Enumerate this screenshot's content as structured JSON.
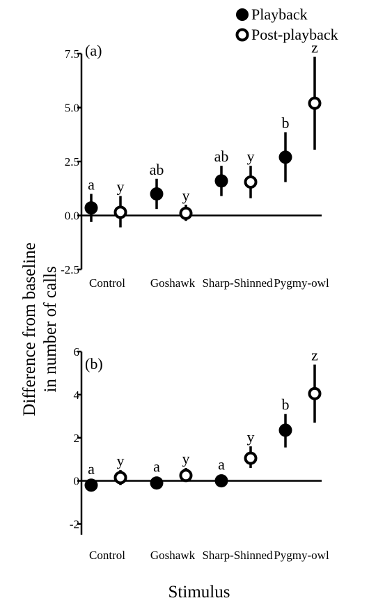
{
  "legend": {
    "playback": "Playback",
    "post_playback": "Post-playback"
  },
  "ylabel_line1": "Difference from baseline",
  "ylabel_line2": "in number of calls",
  "xlabel": "Stimulus",
  "colors": {
    "ink": "#000000",
    "open_fill": "#ffffff"
  },
  "chart_data": [
    {
      "type": "scatter",
      "panel": "(a)",
      "categories": [
        "Control",
        "Goshawk",
        "Sharp-Shinned",
        "Pygmy-owl"
      ],
      "ylim": [
        -2.5,
        7.5
      ],
      "yticks": [
        "-2.5",
        "0.0",
        "2.5",
        "5.0",
        "7.5"
      ],
      "ytick_values": [
        -2.5,
        0,
        2.5,
        5,
        7.5
      ],
      "reference_line": 0,
      "series": [
        {
          "name": "Playback",
          "marker": "filled",
          "values": [
            0.35,
            1.0,
            1.6,
            2.7
          ],
          "lower": [
            -0.3,
            0.3,
            0.9,
            1.55
          ],
          "upper": [
            1.0,
            1.7,
            2.3,
            3.85
          ],
          "letters": [
            "a",
            "ab",
            "ab",
            "b"
          ]
        },
        {
          "name": "Post-playback",
          "marker": "open",
          "values": [
            0.15,
            0.1,
            1.55,
            5.2
          ],
          "lower": [
            -0.55,
            -0.25,
            0.8,
            3.05
          ],
          "upper": [
            0.9,
            0.5,
            2.3,
            7.35
          ],
          "letters": [
            "y",
            "y",
            "y",
            "z"
          ]
        }
      ]
    },
    {
      "type": "scatter",
      "panel": "(b)",
      "categories": [
        "Control",
        "Goshawk",
        "Sharp-Shinned",
        "Pygmy-owl"
      ],
      "ylim": [
        -2.5,
        6
      ],
      "yticks": [
        "-2",
        "0",
        "2",
        "4",
        "6"
      ],
      "ytick_values": [
        -2,
        0,
        2,
        4,
        6
      ],
      "reference_line": 0,
      "series": [
        {
          "name": "Playback",
          "marker": "filled",
          "values": [
            -0.2,
            -0.1,
            0.0,
            2.35
          ],
          "lower": [
            -0.2,
            -0.1,
            0.0,
            1.55
          ],
          "upper": [
            -0.2,
            -0.1,
            0.0,
            3.1
          ],
          "letters": [
            "a",
            "a",
            "a",
            "b"
          ]
        },
        {
          "name": "Post-playback",
          "marker": "open",
          "values": [
            0.15,
            0.25,
            1.05,
            4.05
          ],
          "lower": [
            -0.2,
            -0.05,
            0.6,
            2.7
          ],
          "upper": [
            0.5,
            0.6,
            1.6,
            5.4
          ],
          "letters": [
            "y",
            "y",
            "y",
            "z"
          ]
        }
      ]
    }
  ]
}
